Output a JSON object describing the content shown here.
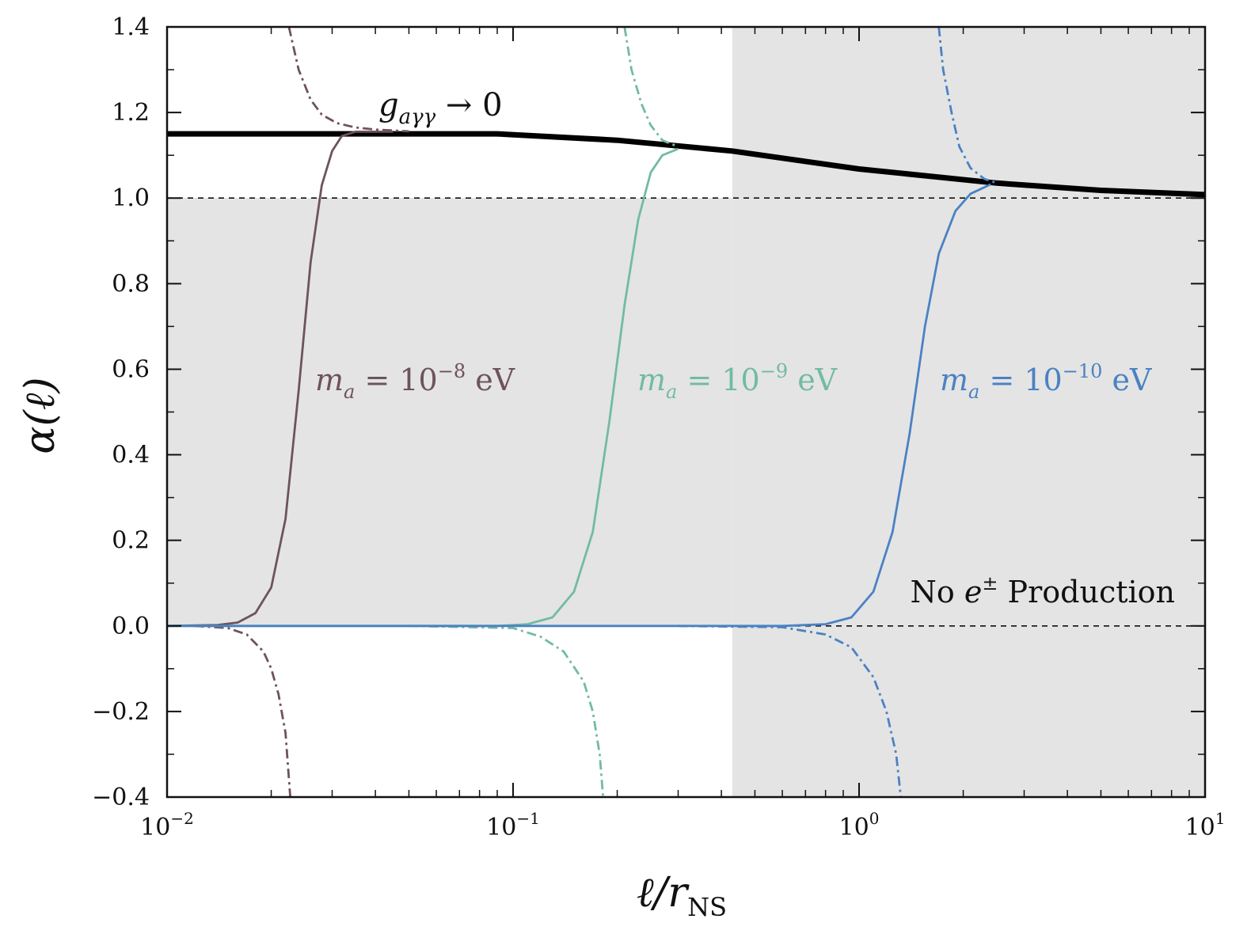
{
  "chart_data": {
    "type": "line",
    "xlabel": "ℓ/r",
    "xlabel_sub": "NS",
    "ylabel": "α(ℓ)",
    "xscale": "log",
    "xlim": [
      0.01,
      10
    ],
    "ylim": [
      -0.4,
      1.4
    ],
    "x_ticks": [
      {
        "value": 0.01,
        "base": "10",
        "exp": "−2"
      },
      {
        "value": 0.1,
        "base": "10",
        "exp": "−1"
      },
      {
        "value": 1,
        "base": "10",
        "exp": "0"
      },
      {
        "value": 10,
        "base": "10",
        "exp": "1"
      }
    ],
    "y_ticks": [
      "−0.4",
      "−0.2",
      "0.0",
      "0.2",
      "0.4",
      "0.6",
      "0.8",
      "1.0",
      "1.2",
      "1.4"
    ],
    "y_tick_values": [
      -0.4,
      -0.2,
      0.0,
      0.2,
      0.4,
      0.6,
      0.8,
      1.0,
      1.2,
      1.4
    ],
    "grid": false,
    "shaded_regions": [
      {
        "x": [
          0.01,
          0.43
        ],
        "y": [
          0.0,
          1.0
        ],
        "color": "#e4e4e4"
      },
      {
        "x": [
          0.43,
          10
        ],
        "y": [
          -0.4,
          1.4
        ],
        "color": "#e4e4e4"
      }
    ],
    "reference_lines": [
      {
        "y": 1.0,
        "style": "dashed"
      },
      {
        "y": 0.0,
        "style": "dashed"
      }
    ],
    "annotations": {
      "g_label": {
        "symbol": "g",
        "sub": "aγγ",
        "text": " → 0"
      },
      "no_production": {
        "prefix": "No ",
        "symbol": "e",
        "sup": "±",
        "suffix": " Production"
      }
    },
    "series": [
      {
        "key": "g0",
        "color": "#000000",
        "style": "solid",
        "points": [
          [
            0.01,
            1.15
          ],
          [
            0.09,
            1.15
          ],
          [
            0.2,
            1.135
          ],
          [
            0.43,
            1.11
          ],
          [
            1.0,
            1.068
          ],
          [
            2.5,
            1.035
          ],
          [
            5.0,
            1.018
          ],
          [
            10.0,
            1.008
          ]
        ]
      },
      {
        "key": "m8",
        "name": "m_a = 10^{-8} eV",
        "label_parts": {
          "m": "m",
          "sub": "a",
          "mid": " = 10",
          "sup": "−8",
          "unit": " eV"
        },
        "color": "#6e535b",
        "solid_points": [
          [
            0.01,
            0.0
          ],
          [
            0.014,
            0.002
          ],
          [
            0.016,
            0.008
          ],
          [
            0.018,
            0.03
          ],
          [
            0.02,
            0.09
          ],
          [
            0.022,
            0.25
          ],
          [
            0.024,
            0.55
          ],
          [
            0.026,
            0.85
          ],
          [
            0.028,
            1.03
          ],
          [
            0.03,
            1.11
          ],
          [
            0.032,
            1.145
          ],
          [
            0.035,
            1.155
          ],
          [
            0.045,
            1.155
          ]
        ],
        "dashdot_upper_points": [
          [
            0.0225,
            1.4
          ],
          [
            0.024,
            1.3
          ],
          [
            0.026,
            1.23
          ],
          [
            0.028,
            1.195
          ],
          [
            0.031,
            1.175
          ],
          [
            0.035,
            1.165
          ],
          [
            0.04,
            1.16
          ],
          [
            0.05,
            1.156
          ]
        ],
        "dashdot_lower_points": [
          [
            0.012,
            0.0
          ],
          [
            0.015,
            -0.005
          ],
          [
            0.017,
            -0.02
          ],
          [
            0.019,
            -0.06
          ],
          [
            0.02,
            -0.1
          ],
          [
            0.021,
            -0.16
          ],
          [
            0.022,
            -0.25
          ],
          [
            0.0227,
            -0.4
          ]
        ]
      },
      {
        "key": "m9",
        "name": "m_a = 10^{-9} eV",
        "label_parts": {
          "m": "m",
          "sub": "a",
          "mid": " = 10",
          "sup": "−9",
          "unit": " eV"
        },
        "color": "#72bba2",
        "solid_points": [
          [
            0.01,
            0.0
          ],
          [
            0.09,
            0.0
          ],
          [
            0.11,
            0.004
          ],
          [
            0.13,
            0.02
          ],
          [
            0.15,
            0.08
          ],
          [
            0.17,
            0.22
          ],
          [
            0.19,
            0.48
          ],
          [
            0.21,
            0.75
          ],
          [
            0.23,
            0.95
          ],
          [
            0.25,
            1.06
          ],
          [
            0.27,
            1.1
          ],
          [
            0.3,
            1.115
          ]
        ],
        "dashdot_upper_points": [
          [
            0.21,
            1.4
          ],
          [
            0.22,
            1.3
          ],
          [
            0.235,
            1.22
          ],
          [
            0.25,
            1.17
          ],
          [
            0.27,
            1.135
          ],
          [
            0.3,
            1.12
          ]
        ],
        "dashdot_lower_points": [
          [
            0.05,
            0.0
          ],
          [
            0.1,
            -0.005
          ],
          [
            0.12,
            -0.025
          ],
          [
            0.14,
            -0.06
          ],
          [
            0.16,
            -0.13
          ],
          [
            0.17,
            -0.2
          ],
          [
            0.178,
            -0.3
          ],
          [
            0.182,
            -0.4
          ]
        ]
      },
      {
        "key": "m10",
        "name": "m_a = 10^{-10} eV",
        "label_parts": {
          "m": "m",
          "sub": "a",
          "mid": " = 10",
          "sup": "−10",
          "unit": " eV"
        },
        "color": "#4a82c3",
        "solid_points": [
          [
            0.01,
            0.0
          ],
          [
            0.6,
            0.0
          ],
          [
            0.8,
            0.004
          ],
          [
            0.95,
            0.02
          ],
          [
            1.1,
            0.08
          ],
          [
            1.25,
            0.22
          ],
          [
            1.4,
            0.45
          ],
          [
            1.55,
            0.7
          ],
          [
            1.7,
            0.87
          ],
          [
            1.9,
            0.97
          ],
          [
            2.1,
            1.01
          ],
          [
            2.4,
            1.032
          ]
        ],
        "dashdot_upper_points": [
          [
            1.7,
            1.4
          ],
          [
            1.75,
            1.3
          ],
          [
            1.85,
            1.2
          ],
          [
            1.95,
            1.12
          ],
          [
            2.1,
            1.07
          ],
          [
            2.3,
            1.045
          ],
          [
            2.5,
            1.035
          ]
        ],
        "dashdot_lower_points": [
          [
            0.3,
            0.0
          ],
          [
            0.6,
            -0.003
          ],
          [
            0.8,
            -0.02
          ],
          [
            0.95,
            -0.05
          ],
          [
            1.1,
            -0.12
          ],
          [
            1.2,
            -0.2
          ],
          [
            1.28,
            -0.3
          ],
          [
            1.32,
            -0.4
          ]
        ]
      }
    ]
  }
}
